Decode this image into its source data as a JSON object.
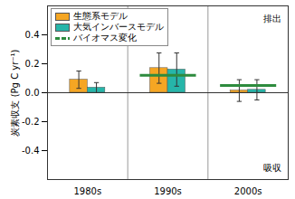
{
  "chart_data": {
    "type": "bar",
    "categories": [
      "1980s",
      "1990s",
      "2000s"
    ],
    "ylabel": "炭素収支 (Pg C yr⁻¹)",
    "ylim": [
      -0.6,
      0.6
    ],
    "yticks": [
      -0.4,
      -0.2,
      {
        "value": 0,
        "label": "0.0"
      },
      0.2,
      0.4
    ],
    "grid": false,
    "legend": "top-left",
    "data_labels": false,
    "annotations": [
      "排出",
      "吸収"
    ],
    "series": [
      {
        "name": "生態系モデル",
        "type": "bar",
        "color": "#f5a623",
        "values": [
          0.09,
          0.17,
          0.015
        ],
        "error": [
          0.06,
          0.105,
          0.075
        ]
      },
      {
        "name": "大気インバースモデル",
        "type": "bar",
        "color": "#26b5a9",
        "values": [
          0.035,
          0.16,
          0.02
        ],
        "error": [
          0.035,
          0.115,
          0.07
        ]
      },
      {
        "name": "バイオマス変化",
        "type": "line",
        "line_style": "dashed",
        "color": "#2e8b3e",
        "values": [
          null,
          0.12,
          0.05
        ]
      }
    ]
  }
}
